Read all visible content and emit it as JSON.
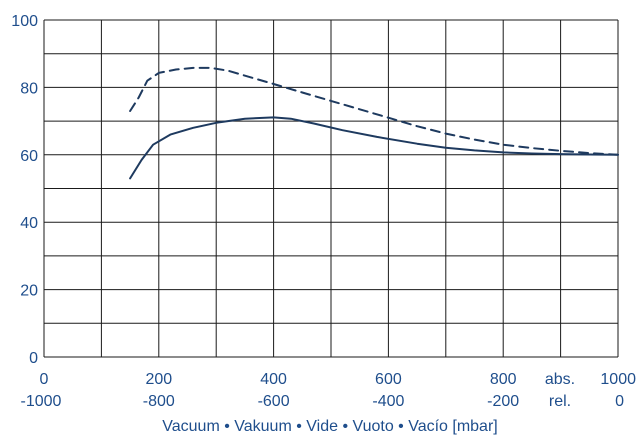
{
  "chart_data": {
    "type": "line",
    "title": "",
    "xlabel": "Vacuum • Vakuum • Vide • Vuoto • Vacío  [mbar]",
    "ylabel": "",
    "xlim": [
      0,
      1000
    ],
    "ylim": [
      0,
      100
    ],
    "grid": true,
    "colors": {
      "line": "#1e3a5f",
      "text": "#1f4e8c",
      "grid": "#1a1a1a"
    },
    "y_ticks": [
      "0",
      "20",
      "40",
      "60",
      "80",
      "100"
    ],
    "x_ticks_abs": [
      {
        "x": 0,
        "label": "0"
      },
      {
        "x": 200,
        "label": "200"
      },
      {
        "x": 400,
        "label": "400"
      },
      {
        "x": 600,
        "label": "600"
      },
      {
        "x": 800,
        "label": "800"
      },
      {
        "x": 1000,
        "label": "1000"
      }
    ],
    "x_ticks_rel": [
      {
        "x": 0,
        "label": "-1000"
      },
      {
        "x": 200,
        "label": "-800"
      },
      {
        "x": 400,
        "label": "-600"
      },
      {
        "x": 600,
        "label": "-400"
      },
      {
        "x": 800,
        "label": "-200"
      },
      {
        "x": 1000,
        "label": "0"
      }
    ],
    "abs_label": "abs.",
    "rel_label": "rel.",
    "series": [
      {
        "style": "dashed",
        "points": [
          [
            150,
            73
          ],
          [
            165,
            77
          ],
          [
            180,
            82
          ],
          [
            200,
            84.3
          ],
          [
            230,
            85.3
          ],
          [
            260,
            85.8
          ],
          [
            290,
            85.8
          ],
          [
            320,
            85
          ],
          [
            360,
            83
          ],
          [
            400,
            81
          ],
          [
            450,
            78.5
          ],
          [
            500,
            76
          ],
          [
            550,
            73.5
          ],
          [
            600,
            71
          ],
          [
            650,
            68.5
          ],
          [
            700,
            66.3
          ],
          [
            750,
            64.5
          ],
          [
            800,
            63
          ],
          [
            850,
            62
          ],
          [
            900,
            61.2
          ],
          [
            950,
            60.5
          ],
          [
            1000,
            60
          ]
        ]
      },
      {
        "style": "solid",
        "points": [
          [
            150,
            53
          ],
          [
            170,
            58.5
          ],
          [
            190,
            63
          ],
          [
            220,
            66
          ],
          [
            260,
            68
          ],
          [
            300,
            69.5
          ],
          [
            350,
            70.7
          ],
          [
            400,
            71.1
          ],
          [
            430,
            70.7
          ],
          [
            470,
            69.3
          ],
          [
            520,
            67.3
          ],
          [
            580,
            65.3
          ],
          [
            650,
            63.3
          ],
          [
            700,
            62.1
          ],
          [
            750,
            61.3
          ],
          [
            800,
            60.7
          ],
          [
            850,
            60.4
          ],
          [
            900,
            60.2
          ],
          [
            950,
            60.1
          ],
          [
            1000,
            60
          ]
        ]
      }
    ]
  }
}
